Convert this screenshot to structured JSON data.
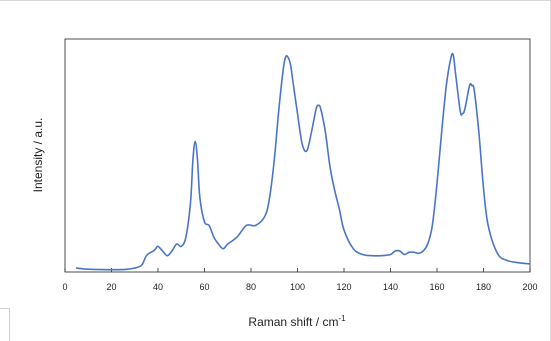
{
  "chart_data": {
    "type": "line",
    "xlabel": "Raman shift / cm",
    "xlabel_superscript": "-1",
    "ylabel": "Intensity / a.u.",
    "xlim": [
      0,
      200
    ],
    "ylim": [
      0,
      1
    ],
    "xticks": [
      "0",
      "20",
      "40",
      "60",
      "80",
      "100",
      "120",
      "140",
      "160",
      "180",
      "200"
    ],
    "yticks": [],
    "grid": false,
    "line_color": "#4a74c9",
    "series": [
      {
        "x": [
          5,
          10,
          20,
          26,
          30,
          33,
          35,
          37,
          38,
          39,
          40,
          42,
          44,
          46,
          48,
          50,
          52,
          54,
          55,
          56,
          57,
          58,
          60,
          62,
          64,
          66,
          68,
          70,
          74,
          78,
          82,
          86,
          88,
          90,
          92,
          94,
          95,
          96,
          97,
          98,
          100,
          102,
          104,
          106,
          108,
          109,
          110,
          112,
          114,
          116,
          118,
          120,
          124,
          128,
          132,
          136,
          140,
          142,
          144,
          146,
          148,
          150,
          152,
          154,
          156,
          158,
          160,
          162,
          164,
          166,
          167,
          168,
          170,
          171,
          172,
          174,
          175,
          176,
          178,
          180,
          182,
          186,
          190,
          195,
          200
        ],
        "values": [
          0.017,
          0.012,
          0.01,
          0.011,
          0.017,
          0.03,
          0.07,
          0.085,
          0.09,
          0.1,
          0.11,
          0.09,
          0.07,
          0.09,
          0.12,
          0.11,
          0.15,
          0.3,
          0.48,
          0.56,
          0.48,
          0.32,
          0.215,
          0.2,
          0.15,
          0.12,
          0.1,
          0.12,
          0.15,
          0.2,
          0.2,
          0.24,
          0.32,
          0.48,
          0.7,
          0.88,
          0.925,
          0.92,
          0.89,
          0.82,
          0.68,
          0.55,
          0.52,
          0.6,
          0.7,
          0.715,
          0.7,
          0.6,
          0.45,
          0.35,
          0.27,
          0.18,
          0.1,
          0.075,
          0.07,
          0.07,
          0.075,
          0.09,
          0.09,
          0.075,
          0.085,
          0.085,
          0.08,
          0.09,
          0.12,
          0.2,
          0.38,
          0.6,
          0.8,
          0.92,
          0.93,
          0.85,
          0.69,
          0.68,
          0.7,
          0.8,
          0.8,
          0.78,
          0.6,
          0.36,
          0.2,
          0.08,
          0.05,
          0.04,
          0.035
        ]
      }
    ]
  }
}
